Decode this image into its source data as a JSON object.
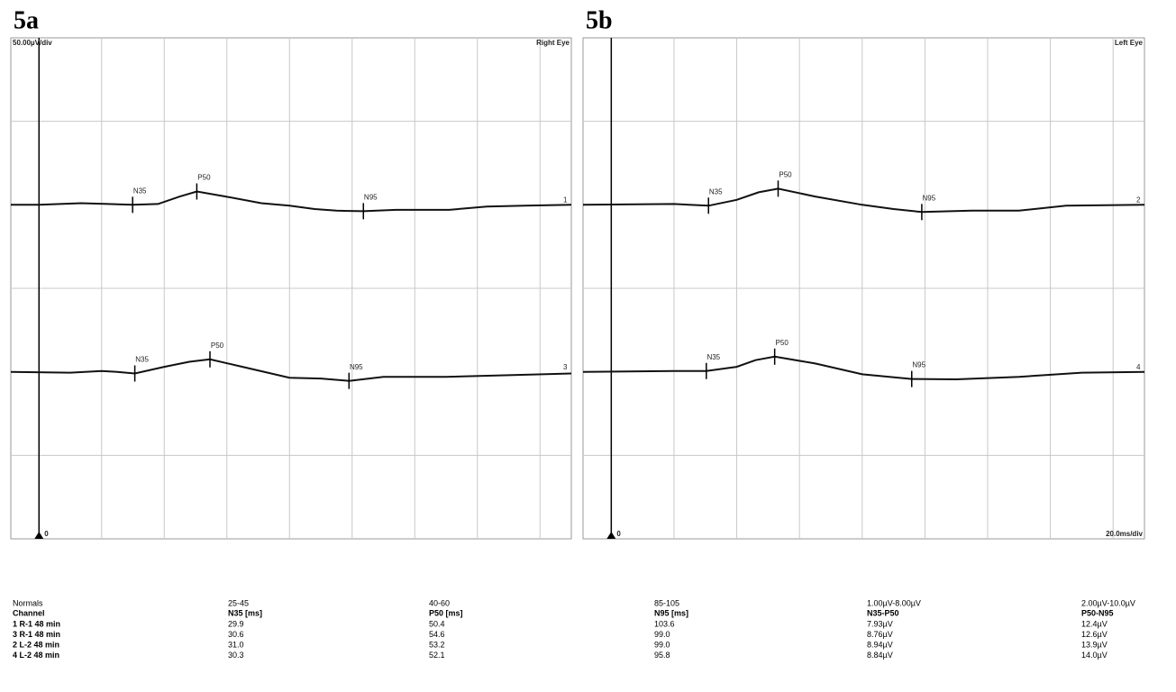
{
  "chart_data": [
    {
      "type": "line",
      "title": "5a",
      "scale_label": "50.00µV/div",
      "eye_label": "Right Eye",
      "origin_label": "0",
      "xlim": [
        -9,
        170
      ],
      "xgrid": [
        20,
        40,
        60,
        80,
        100,
        120,
        140,
        160
      ],
      "ylim": [
        -150,
        150
      ],
      "ygrid": [
        -100,
        0,
        100
      ],
      "series": [
        {
          "name": "1",
          "color": "#111111",
          "ylim": [
            -200,
            100
          ],
          "x": [
            -9,
            0,
            13.5,
            22,
            29.9,
            38,
            45,
            50.4,
            59.6,
            71,
            80,
            88,
            95,
            103.6,
            114,
            131,
            143,
            155,
            170
          ],
          "values": [
            0,
            0,
            1,
            0.5,
            0,
            0.5,
            5,
            8,
            5,
            1,
            -0.5,
            -2.5,
            -3.5,
            -3.8,
            -3,
            -3,
            -1,
            -0.5,
            0
          ],
          "peaks": [
            {
              "label": "N35",
              "x": 29.9,
              "y": 0
            },
            {
              "label": "P50",
              "x": 50.4,
              "y": 8
            },
            {
              "label": "N95",
              "x": 103.6,
              "y": -3.8
            }
          ]
        },
        {
          "name": "3",
          "color": "#111111",
          "ylim": [
            -100,
            200
          ],
          "x": [
            -9,
            10,
            20,
            25,
            30.6,
            40,
            48,
            54.6,
            65,
            80,
            90,
            99,
            110,
            130,
            150,
            170
          ],
          "values": [
            0,
            -0.5,
            0.5,
            0,
            -1,
            3,
            6,
            7.5,
            3,
            -3.5,
            -4,
            -5.4,
            -3,
            -3,
            -2,
            -1
          ],
          "peaks": [
            {
              "label": "N35",
              "x": 30.6,
              "y": -1
            },
            {
              "label": "P50",
              "x": 54.6,
              "y": 7.5
            },
            {
              "label": "N95",
              "x": 99,
              "y": -5.4
            }
          ]
        }
      ]
    },
    {
      "type": "line",
      "title": "5b",
      "eye_label": "Left Eye",
      "time_scale_label": "20.0ms/div",
      "origin_label": "0",
      "xlim": [
        -9,
        170
      ],
      "xgrid": [
        20,
        40,
        60,
        80,
        100,
        120,
        140,
        160
      ],
      "ylim": [
        -150,
        150
      ],
      "ygrid": [
        -100,
        0,
        100
      ],
      "series": [
        {
          "name": "2",
          "color": "#111111",
          "ylim": [
            -200,
            100
          ],
          "x": [
            -9,
            20,
            31,
            40,
            47,
            53.2,
            65,
            80,
            90,
            99,
            115,
            130,
            145,
            170
          ],
          "values": [
            0,
            0.5,
            -0.5,
            3,
            7.5,
            9.7,
            5,
            0,
            -2.5,
            -4.3,
            -3.5,
            -3.5,
            -0.5,
            0
          ],
          "peaks": [
            {
              "label": "N35",
              "x": 31,
              "y": -0.5
            },
            {
              "label": "P50",
              "x": 53.2,
              "y": 9.7
            },
            {
              "label": "N95",
              "x": 99,
              "y": -4.3
            }
          ]
        },
        {
          "name": "4",
          "color": "#111111",
          "ylim": [
            -100,
            200
          ],
          "x": [
            -9,
            20,
            30.3,
            40,
            46,
            52.1,
            65,
            80,
            95.8,
            110,
            130,
            150,
            170
          ],
          "values": [
            0,
            0.5,
            0.5,
            3,
            7,
            9.1,
            5,
            -1.5,
            -4.3,
            -4.5,
            -3,
            -0.5,
            0
          ],
          "peaks": [
            {
              "label": "N35",
              "x": 30.3,
              "y": 0.5
            },
            {
              "label": "P50",
              "x": 52.1,
              "y": 9.1
            },
            {
              "label": "N95",
              "x": 95.8,
              "y": -4.3
            }
          ]
        }
      ]
    }
  ],
  "table": {
    "normals": [
      "Normals",
      "25-45",
      "40-60",
      "85-105",
      "1.00µV-8.00µV",
      "2.00µV-10.0µV"
    ],
    "header": [
      "Channel",
      "N35 [ms]",
      "P50 [ms]",
      "N95 [ms]",
      "N35-P50",
      "P50-N95"
    ],
    "rows": [
      [
        "1 R-1 48 min",
        "29.9",
        "50.4",
        "103.6",
        "7.93µV",
        "12.4µV"
      ],
      [
        "3 R-1 48 min",
        "30.6",
        "54.6",
        "99.0",
        "8.76µV",
        "12.6µV"
      ],
      [
        "2 L-2 48 min",
        "31.0",
        "53.2",
        "99.0",
        "8.94µV",
        "13.9µV"
      ],
      [
        "4 L-2 48 min",
        "30.3",
        "52.1",
        "95.8",
        "8.84µV",
        "14.0µV"
      ]
    ]
  }
}
